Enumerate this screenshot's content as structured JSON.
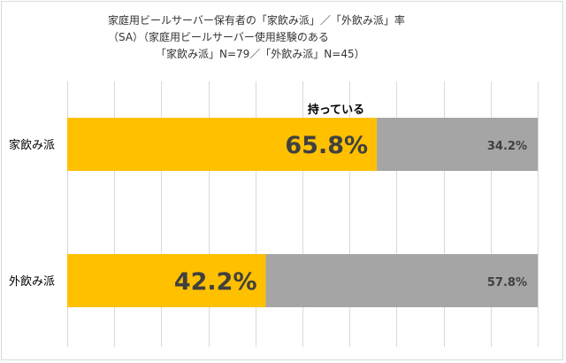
{
  "chart_data": {
    "type": "bar",
    "orientation": "horizontal",
    "stacked": true,
    "title_lines": [
      "家庭用ビールサーバー保有者の「家飲み派」／「外飲み派」率",
      "（SA）（家庭用ビールサーバー使用経験のある",
      "「家飲み派」N=79／「外飲み派」N=45）"
    ],
    "categories": [
      "家飲み派",
      "外飲み派"
    ],
    "series": [
      {
        "name": "持っている",
        "values": [
          65.8,
          42.2
        ],
        "labels": [
          "65.8%",
          "42.2%"
        ],
        "color": "#FFC000"
      },
      {
        "values": [
          34.2,
          57.8
        ],
        "labels": [
          "34.2%",
          "57.8%"
        ],
        "color": "#A5A5A5"
      }
    ],
    "xlim": [
      0,
      100
    ],
    "grid": true,
    "legend": "none"
  }
}
